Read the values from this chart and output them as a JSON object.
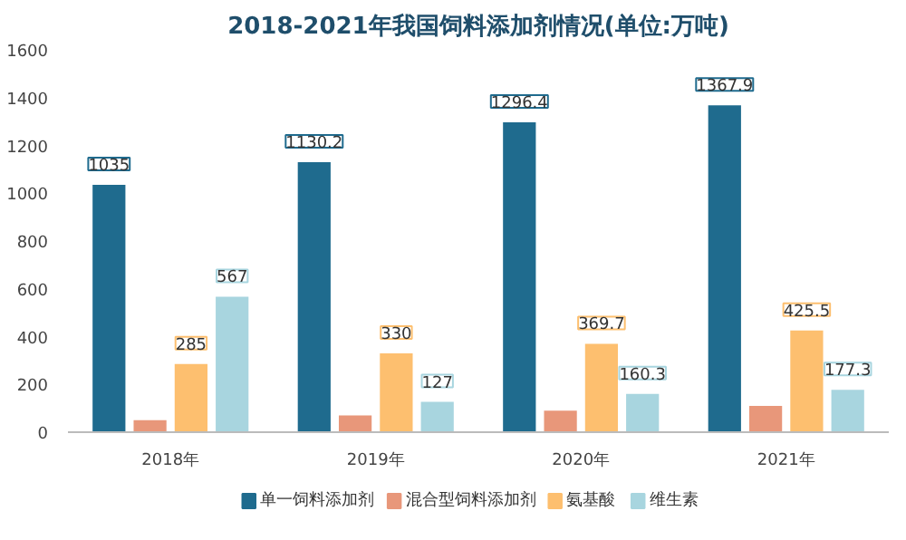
{
  "chart_data": {
    "type": "bar",
    "title": "2018-2021年我国饲料添加剂情况(单位:万吨)",
    "categories": [
      "2018年",
      "2019年",
      "2020年",
      "2021年"
    ],
    "series": [
      {
        "name": "单一饲料添加剂",
        "color": "#1f6b8e",
        "values": [
          1035,
          1130.2,
          1296.4,
          1367.9
        ],
        "value_labels": [
          "1035",
          "1130.2",
          "1296.4",
          "1367.9"
        ]
      },
      {
        "name": "混合型饲料添加剂",
        "color": "#e8977a",
        "values": [
          50,
          70,
          90,
          110
        ]
      },
      {
        "name": "氨基酸",
        "color": "#fdbf6f",
        "values": [
          285,
          330,
          369.7,
          425.5
        ],
        "value_labels": [
          "285",
          "330",
          "369.7",
          "425.5"
        ]
      },
      {
        "name": "维生素",
        "color": "#a8d5df",
        "values": [
          567,
          127,
          160.3,
          177.3
        ],
        "value_labels": [
          "567",
          "127",
          "160.3",
          "177.3"
        ]
      }
    ],
    "ylim": [
      0,
      1600
    ],
    "yticks": [
      0,
      200,
      400,
      600,
      800,
      1000,
      1200,
      1400,
      1600
    ],
    "grid": false,
    "legend": "bottom"
  }
}
